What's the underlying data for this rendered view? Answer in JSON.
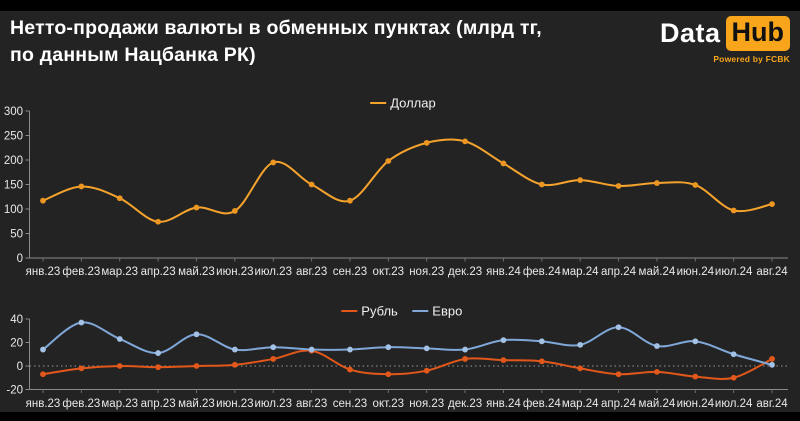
{
  "header": {
    "title_line1": "Нетто-продажи валюты в обменных пунктах (млрд тг,",
    "title_line2": "по данным Нацбанка РК)",
    "logo": {
      "part1": "Data",
      "part2": "Hub",
      "powered_by": "Powered by FCBK",
      "accent_color": "#F9A51B"
    }
  },
  "colors": {
    "background": "#232323",
    "frame_bars": "#000000",
    "title_text": "#FFFFFF",
    "axis_line": "#8A8A8A",
    "tick_label": "#E8E8E8",
    "legend_text": "#F0F0F0",
    "zero_dotted_line": "#9A9A9A",
    "dollar_line": "#F5A32D",
    "ruble_line": "#E2571A",
    "euro_line": "#7FA8D9"
  },
  "chart_data": [
    {
      "type": "line",
      "title": "",
      "xlabel": "",
      "ylabel": "",
      "legend_position": "top-center",
      "grid": false,
      "categories": [
        "янв.23",
        "фев.23",
        "мар.23",
        "апр.23",
        "май.23",
        "июн.23",
        "июл.23",
        "авг.23",
        "сен.23",
        "окт.23",
        "ноя.23",
        "дек.23",
        "янв.24",
        "фев.24",
        "мар.24",
        "апр.24",
        "май.24",
        "июн.24",
        "июл.24",
        "авг.24"
      ],
      "ylim": [
        0,
        300
      ],
      "yticks": [
        0,
        50,
        100,
        150,
        200,
        250,
        300
      ],
      "series": [
        {
          "key": "dollar",
          "name": "Доллар",
          "color": "#F5A32D",
          "marker_color": "#ED9722",
          "values": [
            117,
            146,
            122,
            74,
            103,
            96,
            195,
            150,
            117,
            198,
            235,
            238,
            193,
            150,
            159,
            147,
            153,
            149,
            97,
            110
          ]
        }
      ]
    },
    {
      "type": "line",
      "title": "",
      "xlabel": "",
      "ylabel": "",
      "legend_position": "top-center",
      "grid": false,
      "zero_line_dotted": true,
      "categories": [
        "янв.23",
        "фев.23",
        "мар.23",
        "апр.23",
        "май.23",
        "июн.23",
        "июл.23",
        "авг.23",
        "сен.23",
        "окт.23",
        "ноя.23",
        "дек.23",
        "янв.24",
        "фев.24",
        "мар.24",
        "апр.24",
        "май.24",
        "июн.24",
        "июл.24",
        "авг.24"
      ],
      "ylim": [
        -20,
        40
      ],
      "yticks": [
        -20,
        0,
        20,
        40
      ],
      "series": [
        {
          "key": "ruble",
          "name": "Рубль",
          "color": "#E2571A",
          "marker_color": "#E2571A",
          "values": [
            -7,
            -2,
            0,
            -1,
            0,
            1,
            6,
            13,
            -3,
            -7,
            -4,
            6,
            5,
            4,
            -2,
            -7,
            -5,
            -9,
            -10,
            6
          ]
        },
        {
          "key": "euro",
          "name": "Евро",
          "color": "#7FA8D9",
          "marker_color": "#A3C0E5",
          "values": [
            14,
            37,
            23,
            11,
            27,
            14,
            16,
            14,
            14,
            16,
            15,
            14,
            22,
            21,
            18,
            33,
            17,
            21,
            10,
            1
          ]
        }
      ]
    }
  ]
}
